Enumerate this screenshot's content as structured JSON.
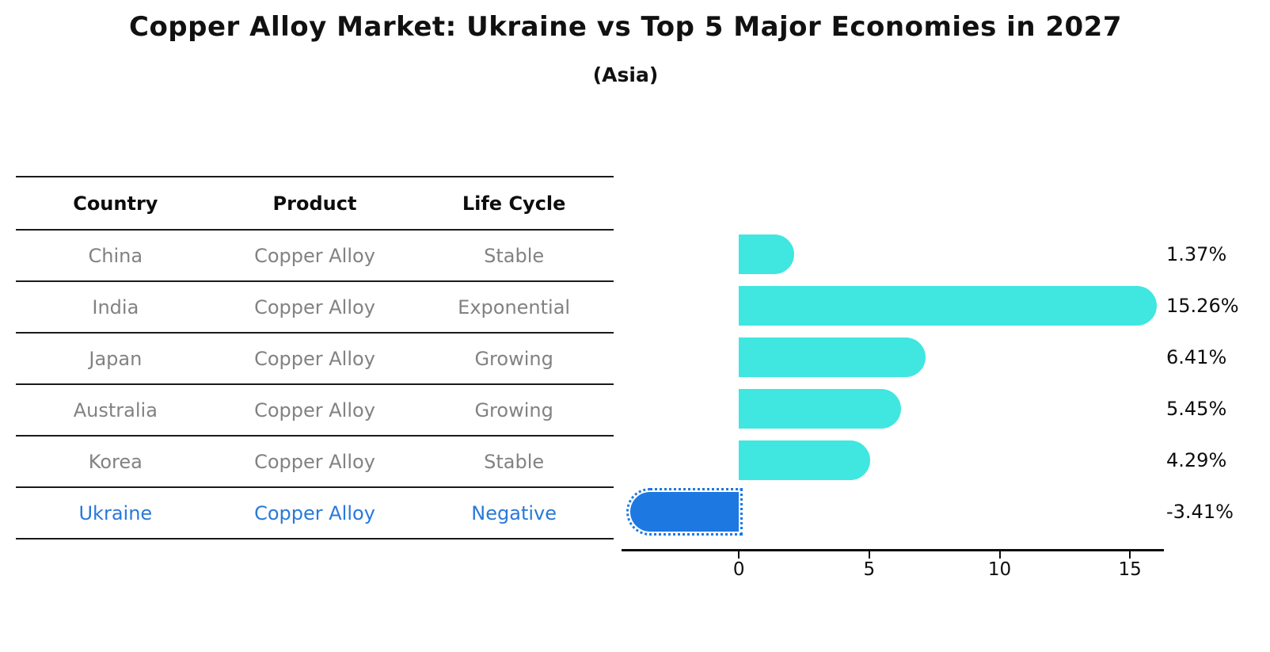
{
  "title": "Copper Alloy Market: Ukraine vs Top 5 Major Economies in 2027",
  "subtitle": "(Asia)",
  "table": {
    "columns": [
      "Country",
      "Product",
      "Life Cycle"
    ],
    "rows": [
      {
        "country": "China",
        "product": "Copper Alloy",
        "life_cycle": "Stable",
        "highlight": false
      },
      {
        "country": "India",
        "product": "Copper Alloy",
        "life_cycle": "Exponential",
        "highlight": false
      },
      {
        "country": "Japan",
        "product": "Copper Alloy",
        "life_cycle": "Growing",
        "highlight": false
      },
      {
        "country": "Australia",
        "product": "Copper Alloy",
        "life_cycle": "Growing",
        "highlight": false
      },
      {
        "country": "Korea",
        "product": "Copper Alloy",
        "life_cycle": "Stable",
        "highlight": false
      },
      {
        "country": "Ukraine",
        "product": "Copper Alloy",
        "life_cycle": "Negative",
        "highlight": true
      }
    ]
  },
  "chart_data": {
    "type": "bar",
    "orientation": "horizontal",
    "title": "Copper Alloy Market: Ukraine vs Top 5 Major Economies in 2027",
    "subtitle": "(Asia)",
    "categories": [
      "China",
      "India",
      "Japan",
      "Australia",
      "Korea",
      "Ukraine"
    ],
    "values": [
      1.37,
      15.26,
      6.41,
      5.45,
      4.29,
      -3.41
    ],
    "value_labels": [
      "1.37%",
      "15.26%",
      "6.41%",
      "5.45%",
      "4.29%",
      "-3.41%"
    ],
    "x_ticks": [
      0,
      5,
      10,
      15
    ],
    "xlim": [
      -4.5,
      16.3
    ],
    "grid": false,
    "legend": null,
    "bar_color_positive": "#40e6e0",
    "bar_color_negative": "#1d78e2",
    "highlight_text_color": "#2979d9",
    "negative_bar_style": "dotted-outline"
  }
}
